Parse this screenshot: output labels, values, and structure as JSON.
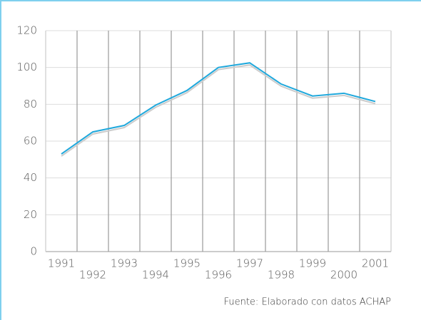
{
  "chart_data": {
    "type": "line",
    "categories": [
      "1991",
      "1992",
      "1993",
      "1994",
      "1995",
      "1996",
      "1997",
      "1998",
      "1999",
      "2000",
      "2001"
    ],
    "series": [
      {
        "color": "#1fa8dc",
        "values": [
          53,
          65,
          68.5,
          79.5,
          87.5,
          100,
          102.5,
          91,
          84.5,
          86,
          81.5
        ]
      }
    ],
    "ylim": [
      0,
      120
    ],
    "yticks": [
      0,
      20,
      40,
      60,
      80,
      100,
      120
    ],
    "grid": true,
    "source": "Fuente: Elaborado con datos ACHAP"
  }
}
